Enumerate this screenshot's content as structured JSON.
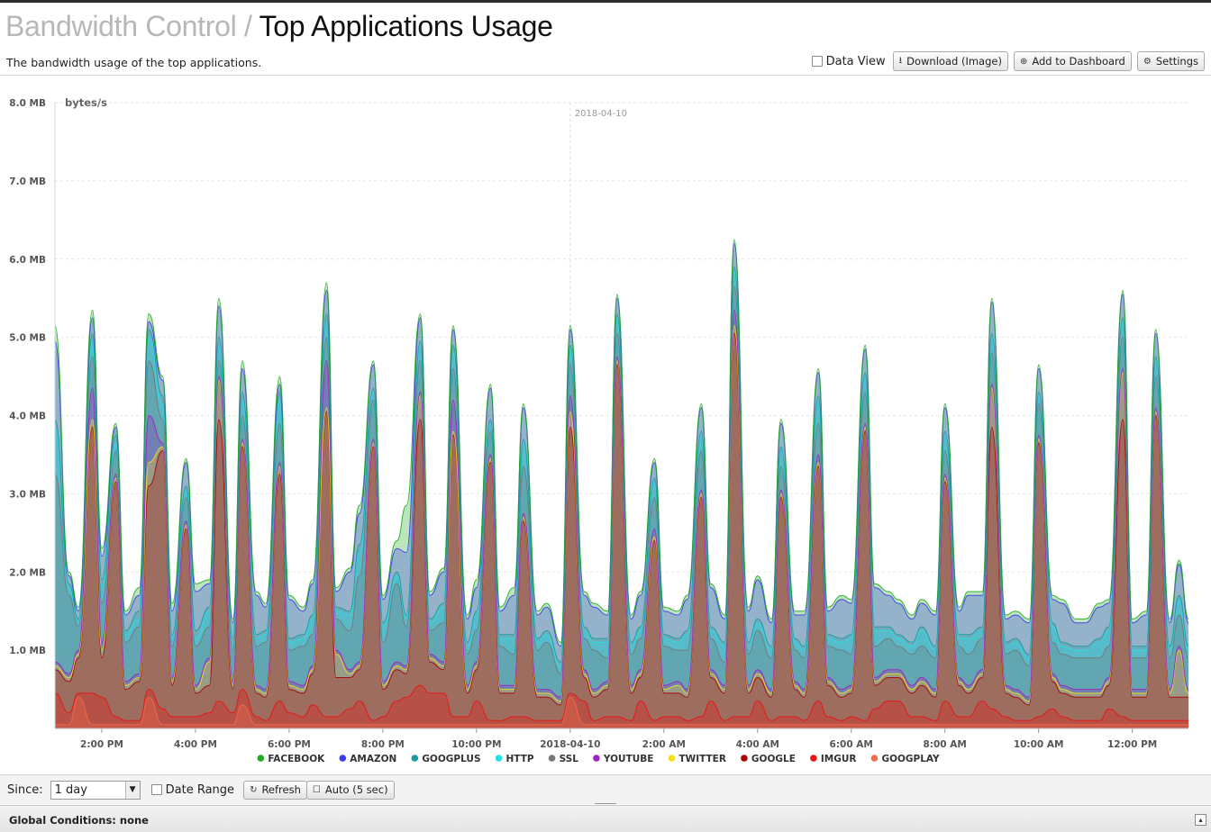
{
  "header": {
    "crumb": "Bandwidth Control",
    "separator": " / ",
    "title": "Top Applications Usage",
    "description": "The bandwidth usage of the top applications."
  },
  "toolbar": {
    "data_view_label": "Data View",
    "download_label": "Download (Image)",
    "dashboard_label": "Add to Dashboard",
    "settings_label": "Settings"
  },
  "controls": {
    "since_label": "Since:",
    "since_value": "1 day",
    "date_range_label": "Date Range",
    "refresh_label": "Refresh",
    "auto_label": "Auto (5 sec)"
  },
  "footer": {
    "global_conditions": "Global Conditions: none"
  },
  "chart_data": {
    "type": "area",
    "stacked": true,
    "ylabel": "bytes/s",
    "ylim": [
      0,
      8
    ],
    "yticks": [
      "1.0 MB",
      "2.0 MB",
      "3.0 MB",
      "4.0 MB",
      "5.0 MB",
      "6.0 MB",
      "7.0 MB",
      "8.0 MB"
    ],
    "xticks": [
      "2:00 PM",
      "4:00 PM",
      "6:00 PM",
      "8:00 PM",
      "10:00 PM",
      "2018-04-10",
      "2:00 AM",
      "4:00 AM",
      "6:00 AM",
      "8:00 AM",
      "10:00 AM",
      "12:00 PM"
    ],
    "day_marker": "2018-04-10",
    "legend_position": "bottom",
    "grid": true,
    "x_hours": [
      13.0,
      13.3,
      13.5,
      13.8,
      14.0,
      14.3,
      14.5,
      14.8,
      15.0,
      15.3,
      15.5,
      15.8,
      16.0,
      16.3,
      16.5,
      16.8,
      17.0,
      17.3,
      17.5,
      17.8,
      18.0,
      18.3,
      18.5,
      18.8,
      19.0,
      19.3,
      19.5,
      19.8,
      20.0,
      20.3,
      20.5,
      20.8,
      21.0,
      21.3,
      21.5,
      21.8,
      22.0,
      22.3,
      22.5,
      22.8,
      23.0,
      23.3,
      23.5,
      23.8,
      24.0,
      24.3,
      24.5,
      24.8,
      25.0,
      25.3,
      25.5,
      25.8,
      26.0,
      26.3,
      26.5,
      26.8,
      27.0,
      27.3,
      27.5,
      27.8,
      28.0,
      28.3,
      28.5,
      28.8,
      29.0,
      29.3,
      29.5,
      29.8,
      30.0,
      30.3,
      30.5,
      30.8,
      31.0,
      31.3,
      31.5,
      31.8,
      32.0,
      32.3,
      32.5,
      32.8,
      33.0,
      33.3,
      33.5,
      33.8,
      34.0,
      34.3,
      34.5,
      34.8,
      35.0,
      35.3,
      35.5,
      35.8,
      36.0,
      36.3,
      36.5,
      36.8,
      37.0,
      37.2
    ],
    "series": [
      {
        "name": "GOOGPLAY",
        "color": "#f46b4a",
        "values": [
          0.05,
          0.05,
          0.4,
          0.05,
          0.05,
          0.05,
          0.05,
          0.05,
          0.4,
          0.05,
          0.05,
          0.05,
          0.05,
          0.05,
          0.05,
          0.05,
          0.3,
          0.05,
          0.05,
          0.05,
          0.05,
          0.05,
          0.05,
          0.05,
          0.05,
          0.05,
          0.05,
          0.05,
          0.05,
          0.05,
          0.05,
          0.05,
          0.05,
          0.05,
          0.05,
          0.05,
          0.05,
          0.05,
          0.05,
          0.05,
          0.05,
          0.05,
          0.05,
          0.05,
          0.4,
          0.05,
          0.05,
          0.05,
          0.05,
          0.05,
          0.05,
          0.05,
          0.05,
          0.05,
          0.05,
          0.05,
          0.05,
          0.05,
          0.05,
          0.05,
          0.05,
          0.05,
          0.05,
          0.05,
          0.05,
          0.05,
          0.05,
          0.05,
          0.05,
          0.05,
          0.05,
          0.05,
          0.05,
          0.05,
          0.05,
          0.05,
          0.05,
          0.05,
          0.05,
          0.05,
          0.05,
          0.05,
          0.05,
          0.05,
          0.05,
          0.05,
          0.05,
          0.05,
          0.05,
          0.05,
          0.05,
          0.05,
          0.05,
          0.05,
          0.05,
          0.05,
          0.05,
          0.05
        ]
      },
      {
        "name": "IMGUR",
        "color": "#ee1111",
        "values": [
          0.4,
          0.15,
          0.05,
          0.4,
          0.35,
          0.1,
          0.05,
          0.05,
          0.1,
          0.2,
          0.1,
          0.1,
          0.1,
          0.15,
          0.3,
          0.15,
          0.2,
          0.1,
          0.05,
          0.3,
          0.15,
          0.1,
          0.25,
          0.1,
          0.1,
          0.2,
          0.3,
          0.05,
          0.1,
          0.3,
          0.35,
          0.5,
          0.4,
          0.4,
          0.1,
          0.1,
          0.3,
          0.05,
          0.05,
          0.1,
          0.1,
          0.05,
          0.05,
          0.05,
          0.05,
          0.3,
          0.05,
          0.1,
          0.1,
          0.05,
          0.3,
          0.05,
          0.1,
          0.1,
          0.05,
          0.1,
          0.3,
          0.05,
          0.1,
          0.1,
          0.3,
          0.05,
          0.1,
          0.1,
          0.05,
          0.3,
          0.1,
          0.05,
          0.1,
          0.05,
          0.2,
          0.3,
          0.3,
          0.1,
          0.1,
          0.05,
          0.3,
          0.1,
          0.1,
          0.3,
          0.2,
          0.1,
          0.05,
          0.05,
          0.1,
          0.2,
          0.1,
          0.05,
          0.05,
          0.05,
          0.2,
          0.1,
          0.05,
          0.05,
          0.05,
          0.05,
          0.05,
          0.05
        ]
      },
      {
        "name": "GOOGLE",
        "color": "#aa0000",
        "values": [
          0.3,
          0.4,
          0.45,
          3.4,
          0.5,
          3.0,
          0.4,
          0.5,
          2.6,
          3.3,
          0.4,
          2.4,
          0.3,
          0.35,
          3.6,
          0.3,
          3.1,
          0.3,
          0.3,
          2.9,
          0.3,
          0.3,
          0.4,
          3.9,
          0.5,
          0.4,
          0.4,
          3.5,
          0.35,
          0.4,
          0.3,
          3.4,
          0.4,
          0.3,
          3.6,
          0.3,
          0.4,
          3.3,
          0.35,
          0.3,
          2.5,
          0.3,
          0.3,
          0.2,
          3.4,
          0.3,
          0.3,
          0.35,
          4.5,
          0.35,
          0.3,
          2.3,
          0.3,
          0.3,
          0.3,
          2.8,
          0.3,
          0.35,
          4.9,
          0.3,
          0.3,
          0.3,
          2.8,
          0.35,
          0.3,
          3.0,
          0.4,
          0.3,
          0.3,
          3.7,
          0.3,
          0.3,
          0.3,
          0.3,
          0.4,
          0.3,
          2.8,
          0.4,
          0.3,
          0.3,
          3.6,
          0.3,
          0.3,
          0.2,
          3.5,
          0.35,
          0.3,
          0.3,
          0.3,
          0.3,
          0.3,
          3.8,
          0.3,
          0.3,
          3.9,
          0.3,
          0.3,
          0.3
        ]
      },
      {
        "name": "TWITTER",
        "color": "#f0e020",
        "values": [
          0.05,
          0.05,
          0.05,
          0.1,
          0.1,
          0.05,
          0.05,
          0.05,
          0.3,
          0.05,
          0.05,
          0.05,
          0.05,
          0.3,
          0.5,
          0.05,
          0.05,
          0.05,
          0.05,
          0.1,
          0.05,
          0.05,
          0.05,
          0.05,
          0.3,
          0.05,
          0.05,
          0.05,
          0.05,
          0.05,
          0.05,
          0.3,
          0.05,
          0.05,
          0.05,
          0.05,
          0.05,
          0.05,
          0.05,
          0.05,
          0.05,
          0.05,
          0.05,
          0.05,
          0.2,
          0.05,
          0.05,
          0.05,
          0.05,
          0.05,
          0.05,
          0.05,
          0.05,
          0.1,
          0.05,
          0.05,
          0.05,
          0.05,
          0.1,
          0.05,
          0.05,
          0.05,
          0.05,
          0.05,
          0.05,
          0.05,
          0.05,
          0.05,
          0.05,
          0.05,
          0.05,
          0.05,
          0.05,
          0.05,
          0.05,
          0.05,
          0.05,
          0.05,
          0.05,
          0.05,
          0.5,
          0.05,
          0.05,
          0.05,
          0.05,
          0.05,
          0.05,
          0.05,
          0.05,
          0.05,
          0.05,
          0.6,
          0.05,
          0.05,
          0.05,
          0.05,
          0.6,
          0.05
        ]
      },
      {
        "name": "YOUTUBE",
        "color": "#a020c0",
        "values": [
          0.05,
          0.05,
          0.05,
          0.4,
          0.1,
          0.05,
          0.05,
          0.05,
          0.6,
          0.05,
          0.05,
          0.05,
          0.05,
          0.05,
          0.05,
          0.05,
          0.05,
          0.05,
          0.05,
          0.05,
          0.05,
          0.05,
          0.05,
          0.6,
          0.05,
          0.05,
          0.05,
          0.05,
          0.05,
          0.05,
          0.05,
          0.05,
          0.05,
          0.05,
          0.4,
          0.05,
          0.05,
          0.05,
          0.05,
          0.05,
          0.05,
          0.05,
          0.05,
          0.05,
          0.2,
          0.05,
          0.05,
          0.05,
          0.05,
          0.05,
          0.05,
          0.1,
          0.05,
          0.05,
          0.05,
          0.05,
          0.05,
          0.05,
          0.2,
          0.05,
          0.05,
          0.05,
          0.05,
          0.05,
          0.05,
          0.1,
          0.05,
          0.05,
          0.05,
          0.05,
          0.05,
          0.05,
          0.05,
          0.05,
          0.05,
          0.05,
          0.05,
          0.05,
          0.05,
          0.05,
          0.05,
          0.05,
          0.05,
          0.05,
          0.05,
          0.05,
          0.05,
          0.05,
          0.05,
          0.05,
          0.05,
          0.05,
          0.05,
          0.05,
          0.05,
          0.05,
          0.05,
          0.05
        ]
      },
      {
        "name": "SSL",
        "color": "#777777",
        "values": [
          2.4,
          1.0,
          0.3,
          0.4,
          0.5,
          0.3,
          0.5,
          0.6,
          0.7,
          0.3,
          0.4,
          0.3,
          0.5,
          0.4,
          0.2,
          0.4,
          0.3,
          0.5,
          0.6,
          0.5,
          0.4,
          0.5,
          0.4,
          0.3,
          0.4,
          0.5,
          1.1,
          0.5,
          0.5,
          1.0,
          0.5,
          0.4,
          0.3,
          0.5,
          0.4,
          0.4,
          0.4,
          0.3,
          0.5,
          0.4,
          0.6,
          0.5,
          0.6,
          0.3,
          0.4,
          0.4,
          0.5,
          0.3,
          0.3,
          0.4,
          0.4,
          0.4,
          0.5,
          0.4,
          0.5,
          0.5,
          0.4,
          0.3,
          0.3,
          0.4,
          0.5,
          0.4,
          0.3,
          0.4,
          0.4,
          0.4,
          0.4,
          0.5,
          0.4,
          0.4,
          0.4,
          0.4,
          0.3,
          0.4,
          0.4,
          0.4,
          0.3,
          0.4,
          0.4,
          0.4,
          0.4,
          0.4,
          0.5,
          0.4,
          0.4,
          0.4,
          0.4,
          0.4,
          0.4,
          0.4,
          0.4,
          0.4,
          0.4,
          0.4,
          0.4,
          0.4,
          0.4,
          0.4
        ]
      },
      {
        "name": "HTTP",
        "color": "#22e0e8",
        "values": [
          0.6,
          0.1,
          0.05,
          0.2,
          0.2,
          0.1,
          0.1,
          0.1,
          0.3,
          0.2,
          0.1,
          0.1,
          0.1,
          0.2,
          0.2,
          0.1,
          0.2,
          0.1,
          0.1,
          0.3,
          0.1,
          0.1,
          0.2,
          0.2,
          0.1,
          0.2,
          0.3,
          0.1,
          0.2,
          0.1,
          0.1,
          0.2,
          0.1,
          0.2,
          0.2,
          0.1,
          0.2,
          0.1,
          0.1,
          0.2,
          0.3,
          0.1,
          0.1,
          0.1,
          0.2,
          0.1,
          0.1,
          0.2,
          0.2,
          0.1,
          0.1,
          0.2,
          0.1,
          0.1,
          0.2,
          0.2,
          0.1,
          0.2,
          0.2,
          0.1,
          0.1,
          0.1,
          0.2,
          0.1,
          0.1,
          0.3,
          0.1,
          0.1,
          0.2,
          0.2,
          0.2,
          0.1,
          0.1,
          0.1,
          0.2,
          0.1,
          0.2,
          0.1,
          0.2,
          0.1,
          0.2,
          0.1,
          0.1,
          0.1,
          0.1,
          0.2,
          0.1,
          0.1,
          0.1,
          0.2,
          0.2,
          0.2,
          0.1,
          0.1,
          0.2,
          0.1,
          0.2,
          0.1
        ]
      },
      {
        "name": "GOOGPLUS",
        "color": "#1a9a9a",
        "values": [
          0.1,
          0.05,
          0.05,
          0.1,
          0.1,
          0.1,
          0.05,
          0.1,
          0.1,
          0.1,
          0.05,
          0.05,
          0.1,
          0.05,
          0.1,
          0.05,
          0.1,
          0.05,
          0.05,
          0.1,
          0.05,
          0.05,
          0.05,
          0.1,
          0.05,
          0.05,
          0.1,
          0.05,
          0.05,
          0.05,
          0.05,
          0.05,
          0.05,
          0.05,
          0.1,
          0.05,
          0.05,
          0.05,
          0.05,
          0.05,
          0.05,
          0.05,
          0.05,
          0.05,
          0.05,
          0.05,
          0.05,
          0.05,
          0.05,
          0.05,
          0.05,
          0.05,
          0.05,
          0.05,
          0.05,
          0.05,
          0.05,
          0.05,
          0.05,
          0.05,
          0.05,
          0.05,
          0.05,
          0.05,
          0.05,
          0.05,
          0.05,
          0.05,
          0.05,
          0.05,
          0.05,
          0.05,
          0.05,
          0.05,
          0.05,
          0.05,
          0.05,
          0.05,
          0.05,
          0.05,
          0.05,
          0.05,
          0.05,
          0.05,
          0.05,
          0.05,
          0.05,
          0.05,
          0.05,
          0.05,
          0.05,
          0.05,
          0.05,
          0.05,
          0.05,
          0.05,
          0.05,
          0.05
        ]
      },
      {
        "name": "AMAZON",
        "color": "#3a3aee",
        "values": [
          1.0,
          0.1,
          0.1,
          0.2,
          0.3,
          0.1,
          0.2,
          0.2,
          0.1,
          0.2,
          0.3,
          0.3,
          0.5,
          0.3,
          0.4,
          0.2,
          0.3,
          0.5,
          0.3,
          0.1,
          0.5,
          0.3,
          0.4,
          0.3,
          0.2,
          0.5,
          0.4,
          0.3,
          0.3,
          0.3,
          0.8,
          0.3,
          0.3,
          0.4,
          0.2,
          0.3,
          0.3,
          0.4,
          0.3,
          0.5,
          0.4,
          0.3,
          0.3,
          0.2,
          0.2,
          0.4,
          0.4,
          0.3,
          0.2,
          0.3,
          0.4,
          0.2,
          0.3,
          0.3,
          0.4,
          0.3,
          0.5,
          0.3,
          0.3,
          0.4,
          0.5,
          0.3,
          0.3,
          0.3,
          0.4,
          0.3,
          0.3,
          0.5,
          0.4,
          0.3,
          0.5,
          0.4,
          0.4,
          0.3,
          0.3,
          0.4,
          0.3,
          0.3,
          0.5,
          0.4,
          0.4,
          0.3,
          0.3,
          0.4,
          0.3,
          0.3,
          0.5,
          0.3,
          0.3,
          0.4,
          0.3,
          0.3,
          0.3,
          0.4,
          0.3,
          0.3,
          0.4,
          0.3
        ]
      },
      {
        "name": "FACEBOOK",
        "color": "#22aa22",
        "values": [
          0.2,
          0.05,
          0.05,
          0.1,
          0.1,
          0.05,
          0.05,
          0.1,
          0.1,
          0.05,
          0.1,
          0.05,
          0.1,
          0.05,
          0.1,
          0.05,
          0.1,
          0.05,
          0.05,
          0.1,
          0.05,
          0.05,
          0.05,
          0.1,
          0.05,
          0.05,
          0.1,
          0.05,
          0.05,
          0.1,
          0.6,
          0.05,
          0.05,
          0.05,
          0.05,
          0.05,
          0.1,
          0.05,
          0.05,
          0.1,
          0.05,
          0.05,
          0.05,
          0.05,
          0.05,
          0.05,
          0.05,
          0.05,
          0.05,
          0.05,
          0.05,
          0.05,
          0.05,
          0.05,
          0.05,
          0.05,
          0.05,
          0.05,
          0.05,
          0.05,
          0.05,
          0.05,
          0.05,
          0.05,
          0.05,
          0.05,
          0.05,
          0.05,
          0.05,
          0.05,
          0.05,
          0.05,
          0.05,
          0.05,
          0.05,
          0.05,
          0.05,
          0.05,
          0.05,
          0.05,
          0.05,
          0.05,
          0.05,
          0.05,
          0.05,
          0.05,
          0.05,
          0.05,
          0.05,
          0.05,
          0.05,
          0.05,
          0.05,
          0.05,
          0.05,
          0.05,
          0.05,
          0.05
        ]
      }
    ],
    "legend": [
      {
        "name": "FACEBOOK",
        "color": "#22aa22"
      },
      {
        "name": "AMAZON",
        "color": "#3a3aee"
      },
      {
        "name": "GOOGPLUS",
        "color": "#1a9a9a"
      },
      {
        "name": "HTTP",
        "color": "#22e0e8"
      },
      {
        "name": "SSL",
        "color": "#777777"
      },
      {
        "name": "YOUTUBE",
        "color": "#a020c0"
      },
      {
        "name": "TWITTER",
        "color": "#f0e020"
      },
      {
        "name": "GOOGLE",
        "color": "#aa0000"
      },
      {
        "name": "IMGUR",
        "color": "#ee1111"
      },
      {
        "name": "GOOGPLAY",
        "color": "#f46b4a"
      }
    ]
  }
}
